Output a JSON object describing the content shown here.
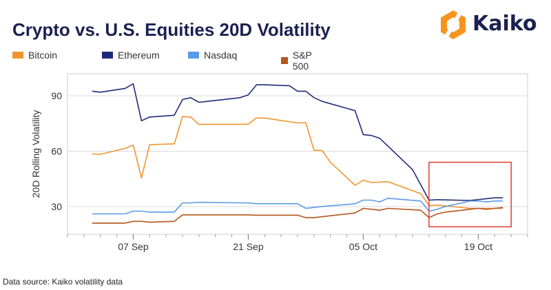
{
  "title": "Crypto vs. U.S. Equities 20D Volatility",
  "brand": {
    "name": "Kaiko",
    "accent": "#f7941d"
  },
  "source": "Data source: Kaiko volatility data",
  "chart_data": {
    "type": "line",
    "title": "Crypto vs. U.S. Equities 20D Volatility",
    "ylabel": "20D Rolling Volatility",
    "xlabel": "",
    "ylim": [
      15,
      102
    ],
    "xlim": [
      "2021-08-30",
      "2021-10-25"
    ],
    "yticks": [
      30,
      60,
      90
    ],
    "xticks": [
      {
        "date": "2021-09-07",
        "label": "07 Sep"
      },
      {
        "date": "2021-09-21",
        "label": "21 Sep"
      },
      {
        "date": "2021-10-05",
        "label": "05 Oct"
      },
      {
        "date": "2021-10-19",
        "label": "19 Oct"
      }
    ],
    "grid": "horizontal",
    "legend_position": "top",
    "highlight": {
      "x_range": [
        "2021-10-13",
        "2021-10-23"
      ],
      "y_range": [
        19,
        54
      ],
      "color": "#e03c31"
    },
    "series": [
      {
        "name": "Bitcoin",
        "color": "#f0952d",
        "points": [
          [
            "2021-09-02",
            58.5
          ],
          [
            "2021-09-03",
            58.3
          ],
          [
            "2021-09-06",
            61.5
          ],
          [
            "2021-09-07",
            63.3
          ],
          [
            "2021-09-08",
            45.5
          ],
          [
            "2021-09-09",
            63.5
          ],
          [
            "2021-09-10",
            63.7
          ],
          [
            "2021-09-12",
            64.0
          ],
          [
            "2021-09-13",
            78.8
          ],
          [
            "2021-09-14",
            78.5
          ],
          [
            "2021-09-15",
            74.5
          ],
          [
            "2021-09-20",
            74.5
          ],
          [
            "2021-09-21",
            74.7
          ],
          [
            "2021-09-22",
            78.0
          ],
          [
            "2021-09-23",
            78.0
          ],
          [
            "2021-09-27",
            75.3
          ],
          [
            "2021-09-28",
            75.5
          ],
          [
            "2021-09-29",
            60.5
          ],
          [
            "2021-09-30",
            60.3
          ],
          [
            "2021-10-01",
            54.0
          ],
          [
            "2021-10-04",
            41.5
          ],
          [
            "2021-10-05",
            44.3
          ],
          [
            "2021-10-06",
            43.0
          ],
          [
            "2021-10-08",
            43.5
          ],
          [
            "2021-10-12",
            37.0
          ],
          [
            "2021-10-13",
            30.5
          ],
          [
            "2021-10-14",
            30.8
          ],
          [
            "2021-10-18",
            29.0
          ],
          [
            "2021-10-22",
            29.0
          ]
        ]
      },
      {
        "name": "Ethereum",
        "color": "#1e2a78",
        "points": [
          [
            "2021-09-02",
            92.5
          ],
          [
            "2021-09-03",
            92.0
          ],
          [
            "2021-09-06",
            94.0
          ],
          [
            "2021-09-07",
            96.5
          ],
          [
            "2021-09-08",
            76.5
          ],
          [
            "2021-09-09",
            78.5
          ],
          [
            "2021-09-12",
            79.5
          ],
          [
            "2021-09-13",
            88.0
          ],
          [
            "2021-09-14",
            89.0
          ],
          [
            "2021-09-15",
            86.5
          ],
          [
            "2021-09-16",
            87.0
          ],
          [
            "2021-09-20",
            89.0
          ],
          [
            "2021-09-21",
            90.5
          ],
          [
            "2021-09-22",
            96.0
          ],
          [
            "2021-09-23",
            96.0
          ],
          [
            "2021-09-26",
            95.5
          ],
          [
            "2021-09-27",
            92.5
          ],
          [
            "2021-09-28",
            92.5
          ],
          [
            "2021-09-29",
            89.0
          ],
          [
            "2021-09-30",
            87.0
          ],
          [
            "2021-10-04",
            82.0
          ],
          [
            "2021-10-05",
            69.0
          ],
          [
            "2021-10-06",
            68.5
          ],
          [
            "2021-10-07",
            67.0
          ],
          [
            "2021-10-11",
            50.0
          ],
          [
            "2021-10-13",
            33.5
          ],
          [
            "2021-10-14",
            33.7
          ],
          [
            "2021-10-18",
            33.3
          ],
          [
            "2021-10-21",
            34.7
          ],
          [
            "2021-10-22",
            34.7
          ]
        ]
      },
      {
        "name": "Nasdaq",
        "color": "#5a9be6",
        "points": [
          [
            "2021-09-02",
            26.0
          ],
          [
            "2021-09-03",
            26.0
          ],
          [
            "2021-09-06",
            26.0
          ],
          [
            "2021-09-07",
            27.5
          ],
          [
            "2021-09-08",
            27.5
          ],
          [
            "2021-09-09",
            27.0
          ],
          [
            "2021-09-12",
            27.0
          ],
          [
            "2021-09-13",
            32.0
          ],
          [
            "2021-09-14",
            32.0
          ],
          [
            "2021-09-15",
            32.3
          ],
          [
            "2021-09-20",
            32.0
          ],
          [
            "2021-09-21",
            32.0
          ],
          [
            "2021-09-22",
            31.5
          ],
          [
            "2021-09-27",
            31.5
          ],
          [
            "2021-09-28",
            29.0
          ],
          [
            "2021-09-29",
            29.5
          ],
          [
            "2021-09-30",
            30.0
          ],
          [
            "2021-10-04",
            31.5
          ],
          [
            "2021-10-05",
            33.5
          ],
          [
            "2021-10-06",
            33.5
          ],
          [
            "2021-10-07",
            32.5
          ],
          [
            "2021-10-08",
            34.5
          ],
          [
            "2021-10-12",
            33.0
          ],
          [
            "2021-10-13",
            27.5
          ],
          [
            "2021-10-14",
            28.5
          ],
          [
            "2021-10-15",
            30.0
          ],
          [
            "2021-10-18",
            33.0
          ],
          [
            "2021-10-19",
            33.0
          ],
          [
            "2021-10-20",
            32.5
          ],
          [
            "2021-10-21",
            33.0
          ],
          [
            "2021-10-22",
            33.0
          ]
        ]
      },
      {
        "name": "S&P 500",
        "color": "#b5541c",
        "points": [
          [
            "2021-09-02",
            21.0
          ],
          [
            "2021-09-03",
            21.0
          ],
          [
            "2021-09-06",
            21.0
          ],
          [
            "2021-09-07",
            22.0
          ],
          [
            "2021-09-08",
            22.0
          ],
          [
            "2021-09-09",
            21.5
          ],
          [
            "2021-09-12",
            22.0
          ],
          [
            "2021-09-13",
            25.5
          ],
          [
            "2021-09-14",
            25.5
          ],
          [
            "2021-09-20",
            25.5
          ],
          [
            "2021-09-21",
            25.5
          ],
          [
            "2021-09-22",
            25.3
          ],
          [
            "2021-09-27",
            25.3
          ],
          [
            "2021-09-28",
            24.0
          ],
          [
            "2021-09-29",
            24.0
          ],
          [
            "2021-09-30",
            24.5
          ],
          [
            "2021-10-04",
            26.5
          ],
          [
            "2021-10-05",
            29.0
          ],
          [
            "2021-10-06",
            28.5
          ],
          [
            "2021-10-07",
            28.0
          ],
          [
            "2021-10-08",
            29.0
          ],
          [
            "2021-10-12",
            28.0
          ],
          [
            "2021-10-13",
            24.0
          ],
          [
            "2021-10-14",
            26.0
          ],
          [
            "2021-10-15",
            27.0
          ],
          [
            "2021-10-18",
            28.5
          ],
          [
            "2021-10-19",
            29.0
          ],
          [
            "2021-10-20",
            28.5
          ],
          [
            "2021-10-21",
            29.0
          ],
          [
            "2021-10-22",
            29.5
          ]
        ]
      }
    ]
  }
}
